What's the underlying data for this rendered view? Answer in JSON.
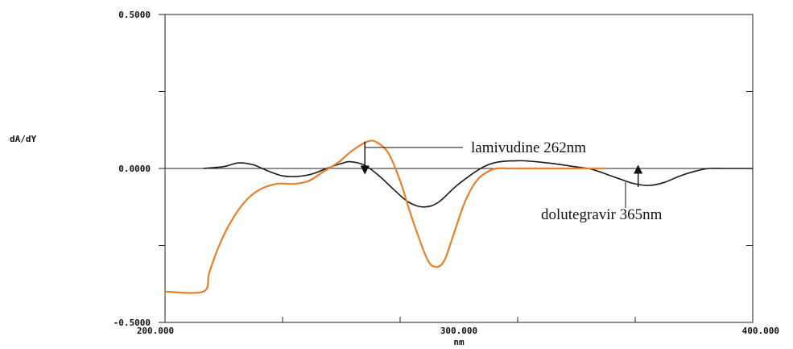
{
  "chart_data": {
    "type": "line",
    "title": "",
    "xlabel": "nm",
    "ylabel": "dA/dY",
    "xlim": [
      200,
      400
    ],
    "ylim": [
      -0.5,
      0.5
    ],
    "x_tick_labels": [
      {
        "value": 200,
        "label": "200.000"
      },
      {
        "value": 300,
        "label": "300.000"
      },
      {
        "value": 400,
        "label": "400.000"
      }
    ],
    "y_tick_labels": [
      {
        "value": 0.5,
        "label": "0.5000"
      },
      {
        "value": 0,
        "label": "0.0000"
      },
      {
        "value": -0.5,
        "label": "-0.5000"
      }
    ],
    "y_ticks": [
      0.5,
      0.25,
      0,
      -0.25,
      -0.5
    ],
    "x_ticks": [
      200,
      240,
      280,
      320,
      360,
      400
    ],
    "zero_line": true,
    "colors": {
      "black_series": "#1a1a1a",
      "orange_series": "#e8802a",
      "axes": "#222222"
    },
    "series": [
      {
        "color": "black",
        "x": [
          213,
          220,
          225,
          230,
          235,
          240,
          245,
          250,
          255,
          260,
          263,
          268,
          273,
          278,
          283,
          288,
          293,
          300,
          310,
          320,
          330,
          340,
          345,
          350,
          355,
          360,
          365,
          370,
          375,
          380,
          385,
          390,
          400
        ],
        "y": [
          0.0,
          0.006,
          0.018,
          0.012,
          -0.008,
          -0.024,
          -0.026,
          -0.018,
          0.0,
          0.016,
          0.022,
          0.01,
          -0.025,
          -0.07,
          -0.11,
          -0.125,
          -0.11,
          -0.05,
          0.012,
          0.025,
          0.018,
          0.005,
          -0.002,
          -0.018,
          -0.035,
          -0.05,
          -0.055,
          -0.045,
          -0.025,
          -0.01,
          0.0,
          0.0,
          0.0
        ]
      },
      {
        "color": "orange",
        "x": [
          200,
          213,
          215,
          218,
          222,
          227,
          232,
          238,
          244,
          249,
          254,
          259,
          264,
          269,
          272,
          276,
          280,
          284,
          289,
          292,
          295,
          298,
          302,
          306,
          310,
          313,
          318,
          325,
          335,
          345,
          350
        ],
        "y": [
          -0.4,
          -0.4,
          -0.34,
          -0.26,
          -0.18,
          -0.11,
          -0.07,
          -0.05,
          -0.05,
          -0.04,
          -0.01,
          0.02,
          0.06,
          0.088,
          0.085,
          0.05,
          -0.04,
          -0.16,
          -0.29,
          -0.32,
          -0.3,
          -0.22,
          -0.11,
          -0.04,
          -0.01,
          0.0,
          0.0,
          0.0,
          0.0,
          0.0,
          0.0
        ]
      }
    ],
    "annotations": [
      {
        "text": "lamivudine 262nm",
        "x": 268,
        "y": 0.082
      },
      {
        "text": "dolutegravir 365nm",
        "x": 361,
        "y": -0.055
      }
    ]
  }
}
